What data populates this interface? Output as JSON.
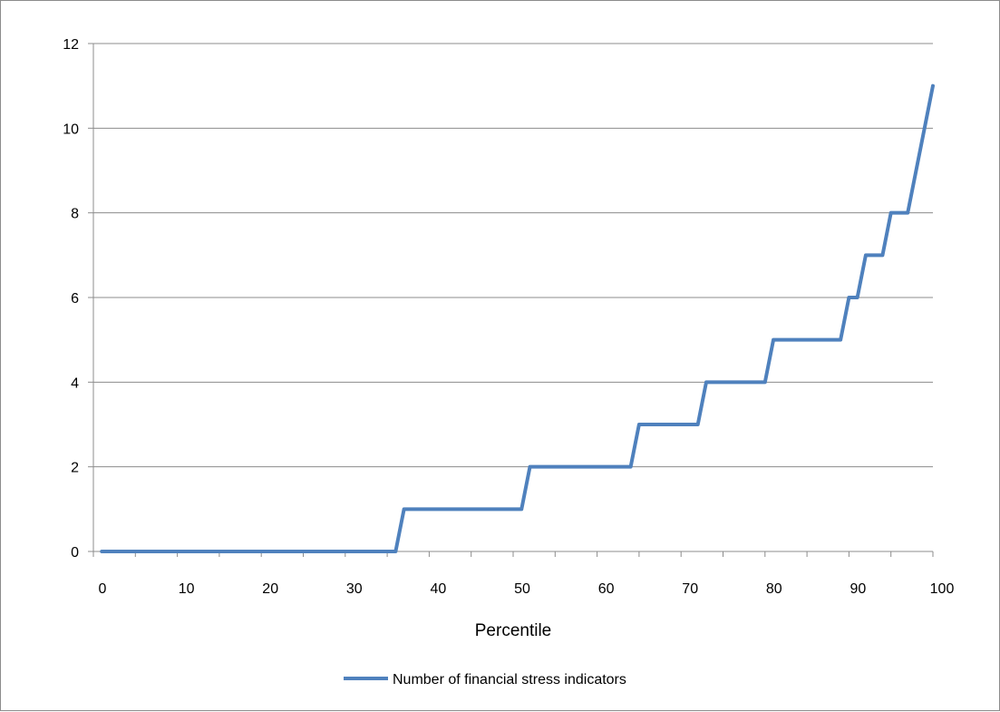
{
  "chart_data": {
    "type": "line",
    "xlabel": "Percentile",
    "ylabel": "",
    "xlim": [
      0,
      100
    ],
    "ylim": [
      0,
      12
    ],
    "xticks": [
      0,
      10,
      20,
      30,
      40,
      50,
      60,
      70,
      80,
      90,
      100
    ],
    "yticks": [
      0,
      2,
      4,
      6,
      8,
      10,
      12
    ],
    "grid": "horizontal",
    "legend_position": "bottom",
    "colors": {
      "series": "#4f81bd",
      "grid": "#8c8c8c",
      "axis": "#8c8c8c"
    },
    "series": [
      {
        "name": "Number of financial stress indicators",
        "points": [
          [
            1,
            0
          ],
          [
            36,
            0
          ],
          [
            37,
            1
          ],
          [
            51,
            1
          ],
          [
            52,
            2
          ],
          [
            64,
            2
          ],
          [
            65,
            3
          ],
          [
            72,
            3
          ],
          [
            73,
            4
          ],
          [
            80,
            4
          ],
          [
            81,
            5
          ],
          [
            89,
            5
          ],
          [
            90,
            6
          ],
          [
            91,
            6
          ],
          [
            92,
            7
          ],
          [
            94,
            7
          ],
          [
            95,
            8
          ],
          [
            97,
            8
          ],
          [
            98,
            9
          ],
          [
            99,
            10
          ],
          [
            100,
            11
          ]
        ]
      }
    ]
  }
}
